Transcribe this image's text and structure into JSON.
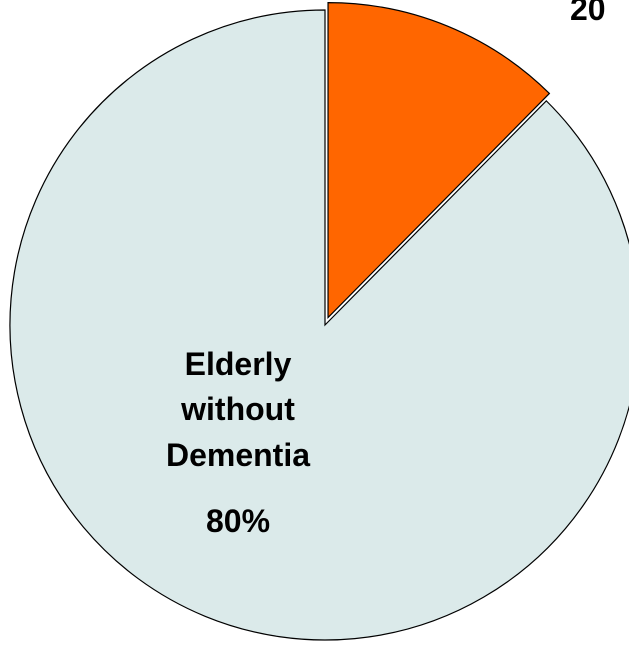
{
  "chart_data": {
    "type": "pie",
    "slices": [
      {
        "label_lines": [
          "Elderly",
          "without",
          "Dementia",
          "80%"
        ],
        "value": 80,
        "color": "#dbeaea"
      },
      {
        "label_lines": [
          "20"
        ],
        "value": 20,
        "color": "#ff6600"
      }
    ]
  }
}
